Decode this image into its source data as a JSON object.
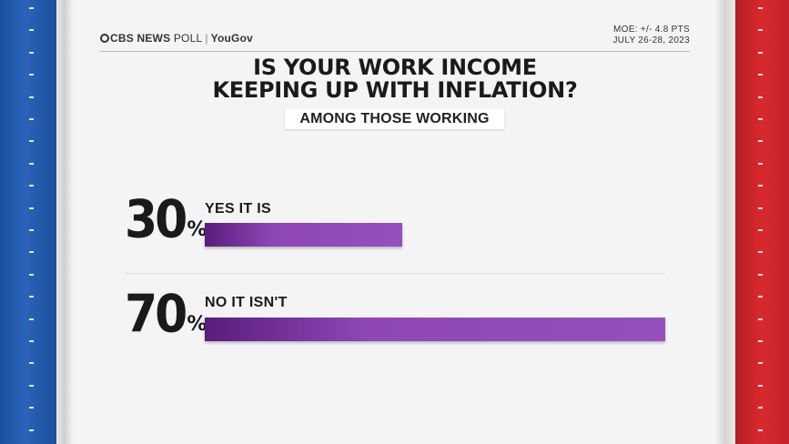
{
  "header": {
    "brand_cbs": "CBS NEWS",
    "brand_poll": "POLL",
    "brand_partner": "YouGov",
    "moe": "MOE: +/- 4.8 PTS",
    "dates": "JULY 26-28, 2023"
  },
  "chart_data": {
    "type": "bar",
    "title_line1": "IS YOUR WORK INCOME",
    "title_line2": "KEEPING UP WITH INFLATION?",
    "subtitle": "AMONG THOSE WORKING",
    "categories": [
      "YES IT IS",
      "NO IT ISN'T"
    ],
    "values": [
      30,
      70
    ],
    "value_labels": [
      "30",
      "70"
    ],
    "unit": "%",
    "xlim": [
      0,
      70
    ],
    "orientation": "horizontal",
    "colors": {
      "bar_start": "#5a1c7e",
      "bar_end": "#9550bb"
    }
  }
}
